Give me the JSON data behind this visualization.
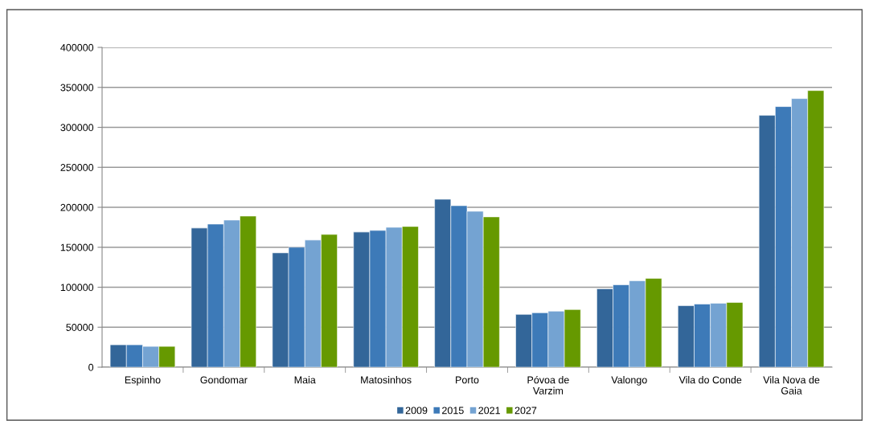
{
  "chart_data": {
    "type": "bar",
    "categories": [
      "Espinho",
      "Gondomar",
      "Maia",
      "Matosinhos",
      "Porto",
      "Póvoa de\nVarzim",
      "Valongo",
      "Vila do Conde",
      "Vila Nova de\nGaia"
    ],
    "series": [
      {
        "name": "2009",
        "color": "#336699",
        "values": [
          28000,
          174000,
          143000,
          169000,
          210000,
          66000,
          98000,
          77000,
          315000
        ]
      },
      {
        "name": "2015",
        "color": "#3d7ab8",
        "values": [
          28000,
          179000,
          150000,
          171000,
          202000,
          68000,
          103000,
          79000,
          326000
        ]
      },
      {
        "name": "2021",
        "color": "#74a3d2",
        "values": [
          26000,
          184000,
          159000,
          175000,
          195000,
          70000,
          108000,
          80000,
          336000
        ]
      },
      {
        "name": "2027",
        "color": "#669900",
        "values": [
          26000,
          189000,
          166000,
          176000,
          188000,
          72000,
          111000,
          81000,
          346000
        ]
      }
    ],
    "ylim": [
      0,
      400000
    ],
    "yticks": [
      0,
      50000,
      100000,
      150000,
      200000,
      250000,
      300000,
      350000,
      400000
    ],
    "grid": "y",
    "legend": "bottom"
  }
}
